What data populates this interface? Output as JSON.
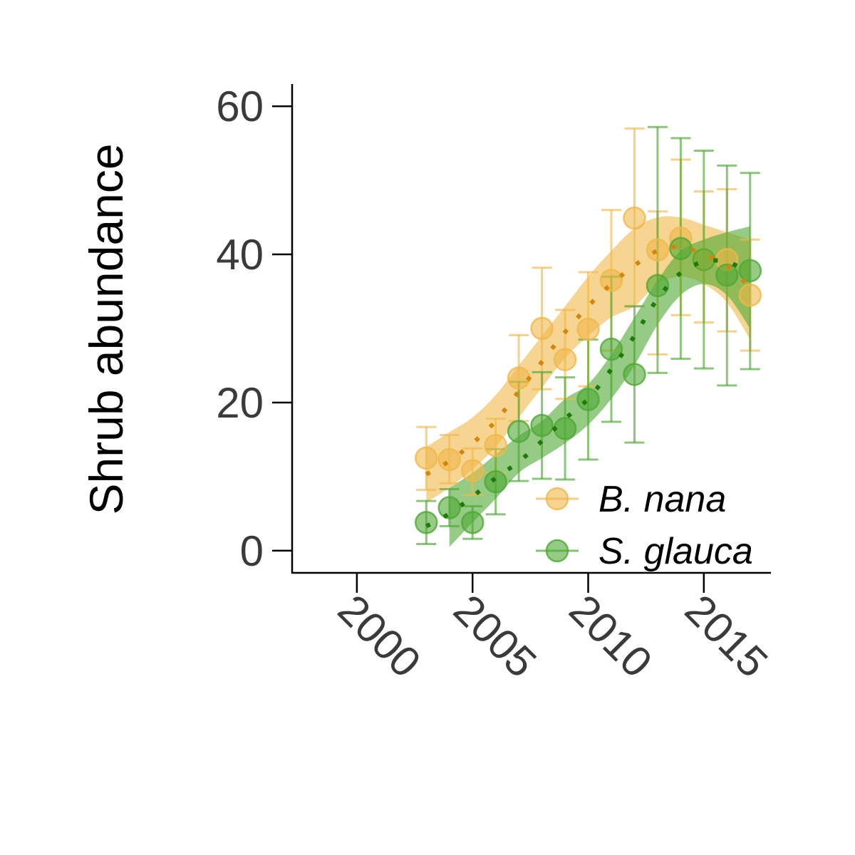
{
  "chart_data": {
    "type": "scatter",
    "title": "",
    "xlabel": "",
    "ylabel": "Shrub abundance",
    "xlim": [
      1997.2,
      2017.9
    ],
    "ylim": [
      -3,
      63
    ],
    "x_ticks": [
      2000,
      2005,
      2010,
      2015
    ],
    "x_tick_labels": [
      "2000",
      "2005",
      "2010",
      "2015"
    ],
    "y_ticks": [
      0,
      20,
      40,
      60
    ],
    "y_tick_labels": [
      "0",
      "20",
      "40",
      "60"
    ],
    "grid": false,
    "legend_position": "bottom-right",
    "series": [
      {
        "name": "B. nana",
        "color": "#f0b84a",
        "fit_color": "#d4860a",
        "points": [
          {
            "x": 2003,
            "y": 12.5,
            "lo": 8.2,
            "hi": 16.7
          },
          {
            "x": 2004,
            "y": 12.3,
            "lo": 9.1,
            "hi": 15.6
          },
          {
            "x": 2005,
            "y": 10.8,
            "lo": 7.5,
            "hi": 13.8
          },
          {
            "x": 2006,
            "y": 14.2,
            "lo": 10.5,
            "hi": 17.8
          },
          {
            "x": 2007,
            "y": 23.3,
            "lo": 17.5,
            "hi": 29.1
          },
          {
            "x": 2008,
            "y": 30.0,
            "lo": 21.8,
            "hi": 38.2
          },
          {
            "x": 2009,
            "y": 25.8,
            "lo": 20.5,
            "hi": 32.5
          },
          {
            "x": 2010,
            "y": 29.9,
            "lo": 22.2,
            "hi": 37.6
          },
          {
            "x": 2011,
            "y": 36.5,
            "lo": 27.0,
            "hi": 46.0
          },
          {
            "x": 2012,
            "y": 44.9,
            "lo": 33.0,
            "hi": 57.0
          },
          {
            "x": 2013,
            "y": 40.6,
            "lo": 26.5,
            "hi": 45.8
          },
          {
            "x": 2014,
            "y": 42.2,
            "lo": 31.8,
            "hi": 52.8
          },
          {
            "x": 2015,
            "y": 39.3,
            "lo": 30.8,
            "hi": 48.5
          },
          {
            "x": 2016,
            "y": 39.3,
            "lo": 29.6,
            "hi": 48.8
          },
          {
            "x": 2017,
            "y": 34.5,
            "lo": 27.0,
            "hi": 42.0
          }
        ],
        "fit": [
          {
            "x": 2003,
            "y": 10.3
          },
          {
            "x": 2004,
            "y": 12.1
          },
          {
            "x": 2005,
            "y": 14.5
          },
          {
            "x": 2006,
            "y": 17.5
          },
          {
            "x": 2007,
            "y": 21.5
          },
          {
            "x": 2008,
            "y": 25.5
          },
          {
            "x": 2009,
            "y": 29.5
          },
          {
            "x": 2010,
            "y": 33.0
          },
          {
            "x": 2011,
            "y": 36.0
          },
          {
            "x": 2012,
            "y": 38.5
          },
          {
            "x": 2013,
            "y": 40.5
          },
          {
            "x": 2014,
            "y": 41.0
          },
          {
            "x": 2015,
            "y": 40.0
          },
          {
            "x": 2016,
            "y": 38.5
          },
          {
            "x": 2017,
            "y": 35.5
          }
        ],
        "band_lo": [
          {
            "x": 2003,
            "y": 6.5
          },
          {
            "x": 2004,
            "y": 8.5
          },
          {
            "x": 2005,
            "y": 11.0
          },
          {
            "x": 2006,
            "y": 14.0
          },
          {
            "x": 2007,
            "y": 18.0
          },
          {
            "x": 2008,
            "y": 22.0
          },
          {
            "x": 2009,
            "y": 26.0
          },
          {
            "x": 2010,
            "y": 29.0
          },
          {
            "x": 2011,
            "y": 31.5
          },
          {
            "x": 2012,
            "y": 33.0
          },
          {
            "x": 2013,
            "y": 36.0
          },
          {
            "x": 2014,
            "y": 37.0
          },
          {
            "x": 2015,
            "y": 36.0
          },
          {
            "x": 2016,
            "y": 33.5
          },
          {
            "x": 2017,
            "y": 28.5
          }
        ],
        "band_hi": [
          {
            "x": 2003,
            "y": 14.0
          },
          {
            "x": 2004,
            "y": 16.0
          },
          {
            "x": 2005,
            "y": 18.0
          },
          {
            "x": 2006,
            "y": 21.0
          },
          {
            "x": 2007,
            "y": 25.0
          },
          {
            "x": 2008,
            "y": 29.0
          },
          {
            "x": 2009,
            "y": 33.0
          },
          {
            "x": 2010,
            "y": 37.0
          },
          {
            "x": 2011,
            "y": 40.5
          },
          {
            "x": 2012,
            "y": 43.5
          },
          {
            "x": 2013,
            "y": 45.0
          },
          {
            "x": 2014,
            "y": 45.0
          },
          {
            "x": 2015,
            "y": 44.0
          },
          {
            "x": 2016,
            "y": 43.0
          },
          {
            "x": 2017,
            "y": 42.0
          }
        ]
      },
      {
        "name": "S. glauca",
        "color": "#4ea833",
        "fit_color": "#1f7a0a",
        "points": [
          {
            "x": 2003,
            "y": 3.8,
            "lo": 0.9,
            "hi": 6.7
          },
          {
            "x": 2004,
            "y": 5.8,
            "lo": 3.3,
            "hi": 8.3
          },
          {
            "x": 2005,
            "y": 3.8,
            "lo": 1.6,
            "hi": 6.0
          },
          {
            "x": 2006,
            "y": 9.3,
            "lo": 4.9,
            "hi": 13.7
          },
          {
            "x": 2007,
            "y": 16.1,
            "lo": 9.4,
            "hi": 22.8
          },
          {
            "x": 2008,
            "y": 16.9,
            "lo": 9.7,
            "hi": 24.1
          },
          {
            "x": 2009,
            "y": 16.5,
            "lo": 9.6,
            "hi": 23.4
          },
          {
            "x": 2010,
            "y": 20.4,
            "lo": 12.3,
            "hi": 28.5
          },
          {
            "x": 2011,
            "y": 27.2,
            "lo": 17.4,
            "hi": 37.0
          },
          {
            "x": 2012,
            "y": 23.8,
            "lo": 14.6,
            "hi": 33.0
          },
          {
            "x": 2013,
            "y": 35.8,
            "lo": 24.0,
            "hi": 57.2
          },
          {
            "x": 2014,
            "y": 40.8,
            "lo": 25.9,
            "hi": 55.7
          },
          {
            "x": 2015,
            "y": 39.3,
            "lo": 24.6,
            "hi": 54.0
          },
          {
            "x": 2016,
            "y": 37.2,
            "lo": 22.3,
            "hi": 52.0
          },
          {
            "x": 2017,
            "y": 37.8,
            "lo": 24.5,
            "hi": 51.0
          }
        ],
        "fit": [
          {
            "x": 2003,
            "y": 3.3
          },
          {
            "x": 2004,
            "y": 5.0
          },
          {
            "x": 2005,
            "y": 7.3
          },
          {
            "x": 2006,
            "y": 9.8
          },
          {
            "x": 2007,
            "y": 12.0
          },
          {
            "x": 2008,
            "y": 14.8
          },
          {
            "x": 2009,
            "y": 17.8
          },
          {
            "x": 2010,
            "y": 20.5
          },
          {
            "x": 2011,
            "y": 24.5
          },
          {
            "x": 2012,
            "y": 29.0
          },
          {
            "x": 2013,
            "y": 34.0
          },
          {
            "x": 2014,
            "y": 37.5
          },
          {
            "x": 2015,
            "y": 39.0
          },
          {
            "x": 2016,
            "y": 39.0
          },
          {
            "x": 2017,
            "y": 37.5
          }
        ],
        "band_lo": [
          {
            "x": 2004,
            "y": 0.5
          },
          {
            "x": 2005,
            "y": 3.8
          },
          {
            "x": 2006,
            "y": 7.0
          },
          {
            "x": 2007,
            "y": 10.5
          },
          {
            "x": 2008,
            "y": 12.5
          },
          {
            "x": 2009,
            "y": 14.5
          },
          {
            "x": 2010,
            "y": 17.0
          },
          {
            "x": 2011,
            "y": 20.5
          },
          {
            "x": 2012,
            "y": 25.0
          },
          {
            "x": 2013,
            "y": 30.5
          },
          {
            "x": 2014,
            "y": 34.5
          },
          {
            "x": 2015,
            "y": 36.0
          },
          {
            "x": 2016,
            "y": 34.5
          },
          {
            "x": 2017,
            "y": 30.0
          }
        ],
        "band_hi": [
          {
            "x": 2004,
            "y": 8.5
          },
          {
            "x": 2005,
            "y": 10.5
          },
          {
            "x": 2006,
            "y": 13.0
          },
          {
            "x": 2007,
            "y": 15.5
          },
          {
            "x": 2008,
            "y": 17.5
          },
          {
            "x": 2009,
            "y": 20.5
          },
          {
            "x": 2010,
            "y": 22.5
          },
          {
            "x": 2011,
            "y": 26.5
          },
          {
            "x": 2012,
            "y": 31.5
          },
          {
            "x": 2013,
            "y": 36.5
          },
          {
            "x": 2014,
            "y": 40.5
          },
          {
            "x": 2015,
            "y": 42.0
          },
          {
            "x": 2016,
            "y": 43.0
          },
          {
            "x": 2017,
            "y": 43.8
          }
        ]
      }
    ]
  }
}
